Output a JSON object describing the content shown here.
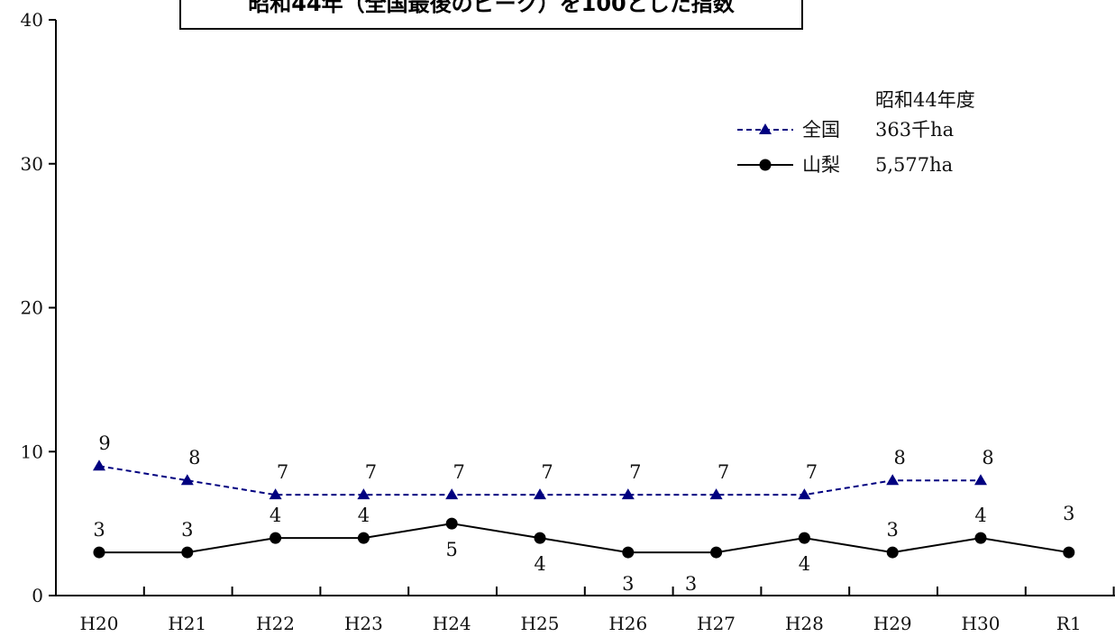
{
  "chart_data": {
    "type": "line",
    "title": "昭和44年（全国最後のピーク）を100とした指数",
    "categories": [
      "H20",
      "H21",
      "H22",
      "H23",
      "H24",
      "H25",
      "H26",
      "H27",
      "H28",
      "H29",
      "H30",
      "R1"
    ],
    "ylim": [
      0,
      40
    ],
    "yticks": [
      0,
      10,
      20,
      30,
      40
    ],
    "grid": false,
    "legend_position": "top-right",
    "legend_header": "昭和44年度",
    "series": [
      {
        "name": "全国",
        "base_value": "363千ha",
        "values": [
          9,
          8,
          7,
          7,
          7,
          7,
          7,
          7,
          7,
          8,
          8,
          null
        ],
        "color": "#000080",
        "line_style": "dashed",
        "marker": "triangle"
      },
      {
        "name": "山梨",
        "base_value": "5,577ha",
        "values": [
          3,
          3,
          4,
          4,
          5,
          4,
          3,
          3,
          4,
          3,
          4,
          3
        ],
        "color": "#000000",
        "line_style": "solid",
        "marker": "circle"
      }
    ]
  }
}
